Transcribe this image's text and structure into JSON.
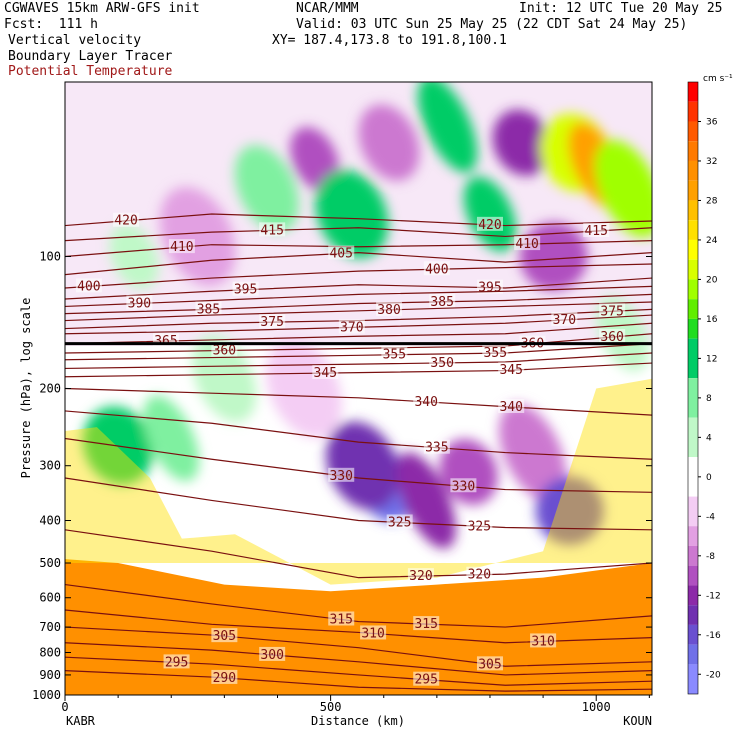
{
  "header": {
    "model": "CGWAVES 15km ARW-GFS init",
    "center": "NCAR/MMM",
    "init": "Init: 12 UTC Tue 20 May 25",
    "fcst": "Fcst:  111 h",
    "valid": "Valid: 03 UTC Sun 25 May 25 (22 CDT Sat 24 May 25)",
    "field1": "Vertical velocity",
    "field2": "Boundary Layer Tracer",
    "field3": "Potential Temperature",
    "xy": "XY= 187.4,173.8 to 191.8,100.1"
  },
  "colors": {
    "theta": "#7a1010",
    "field3_label": "#a01818"
  },
  "chart_data": {
    "type": "heatmap",
    "xlabel": "Distance (km)",
    "ylabel": "Pressure (hPa), log scale",
    "x_ticks": [
      "0",
      "500",
      "1000"
    ],
    "x_tick_values": [
      0,
      500,
      1000
    ],
    "xlim": [
      0,
      1105
    ],
    "x_endpoints": {
      "left": "KABR",
      "right": "KOUN"
    },
    "y_ticks": [
      "100",
      "200",
      "300",
      "400",
      "500",
      "600",
      "700",
      "800",
      "900",
      "1000"
    ],
    "y_tick_values": [
      100,
      200,
      300,
      400,
      500,
      600,
      700,
      800,
      900,
      1000
    ],
    "ylim": [
      1000,
      40
    ],
    "y_scale": "log",
    "colorbar": {
      "unit": "cm s⁻¹",
      "labels": [
        "36",
        "32",
        "28",
        "24",
        "20",
        "16",
        "12",
        "8",
        "4",
        "0",
        "-4",
        "-8",
        "-12",
        "-16",
        "-20"
      ],
      "label_values": [
        36,
        32,
        28,
        24,
        20,
        16,
        12,
        8,
        4,
        0,
        -4,
        -8,
        -12,
        -16,
        -20
      ],
      "range": [
        -22,
        40
      ],
      "colors": [
        "#ff0000",
        "#ff3300",
        "#ff5a00",
        "#ff7a00",
        "#ff9000",
        "#ffa000",
        "#ffc000",
        "#ffe000",
        "#ffff00",
        "#d8ff00",
        "#a0ff00",
        "#60ee00",
        "#20dd20",
        "#00cc66",
        "#7ff0a0",
        "#c0f8c8",
        "#ffffff",
        "#f4cdf4",
        "#e2a0e2",
        "#cc78d0",
        "#b050c0",
        "#8c2aa8",
        "#7030b0",
        "#6a50d0",
        "#7070e8",
        "#8a8aff"
      ],
      "boundaries": [
        40,
        38,
        36,
        34,
        32,
        30,
        28,
        26,
        24,
        22,
        20,
        18,
        16,
        14,
        10,
        6,
        2,
        -2,
        -5,
        -7,
        -9,
        -11,
        -13,
        -15,
        -17,
        -19,
        -22
      ]
    },
    "theta_contours": [
      {
        "label": "420",
        "pressure": [
          85,
          80,
          82,
          85,
          83
        ],
        "label_pos": [
          [
            115,
            420
          ],
          [
            800,
            420
          ]
        ]
      },
      {
        "label": "415",
        "pressure": [
          92,
          88,
          86,
          90,
          86
        ],
        "label_pos": [
          [
            390,
            415
          ],
          [
            1000,
            415
          ]
        ]
      },
      {
        "label": "410",
        "pressure": [
          100,
          94,
          95,
          94,
          92
        ],
        "label_pos": [
          [
            220,
            410
          ],
          [
            870,
            410
          ]
        ]
      },
      {
        "label": "405",
        "pressure": [
          110,
          102,
          98,
          103,
          98
        ],
        "label_pos": [
          [
            520,
            405
          ]
        ]
      },
      {
        "label": "400",
        "pressure": [
          118,
          112,
          108,
          106,
          104
        ],
        "label_pos": [
          [
            45,
            400
          ],
          [
            700,
            400
          ]
        ]
      },
      {
        "label": "395",
        "pressure": [
          125,
          120,
          116,
          118,
          112
        ],
        "label_pos": [
          [
            340,
            395
          ],
          [
            800,
            395
          ]
        ]
      },
      {
        "label": "390",
        "pressure": [
          130,
          126,
          122,
          120,
          117
        ],
        "label_pos": [
          [
            140,
            390
          ]
        ]
      },
      {
        "label": "385",
        "pressure": [
          135,
          132,
          128,
          126,
          122
        ],
        "label_pos": [
          [
            270,
            385
          ],
          [
            710,
            385
          ]
        ]
      },
      {
        "label": "380",
        "pressure": [
          140,
          136,
          133,
          130,
          127
        ],
        "label_pos": [
          [
            610,
            380
          ]
        ]
      },
      {
        "label": "375",
        "pressure": [
          146,
          142,
          140,
          137,
          132
        ],
        "label_pos": [
          [
            390,
            375
          ],
          [
            1030,
            375
          ]
        ]
      },
      {
        "label": "370",
        "pressure": [
          150,
          148,
          145,
          142,
          136
        ],
        "label_pos": [
          [
            540,
            370
          ],
          [
            940,
            370
          ]
        ]
      },
      {
        "label": "365",
        "pressure": [
          158,
          155,
          152,
          150,
          142
        ],
        "label_pos": [
          [
            190,
            365
          ]
        ]
      },
      {
        "label": "360",
        "pressure": [
          166,
          164,
          162,
          160,
          150
        ],
        "label_pos": [
          [
            300,
            360
          ],
          [
            880,
            360
          ],
          [
            1030,
            360
          ]
        ]
      },
      {
        "label": "355",
        "pressure": [
          172,
          170,
          168,
          166,
          158
        ],
        "label_pos": [
          [
            620,
            355
          ],
          [
            810,
            355
          ]
        ]
      },
      {
        "label": "350",
        "pressure": [
          180,
          178,
          176,
          174,
          166
        ],
        "label_pos": [
          [
            710,
            350
          ]
        ]
      },
      {
        "label": "345",
        "pressure": [
          188,
          186,
          184,
          182,
          175
        ],
        "label_pos": [
          [
            490,
            345
          ],
          [
            840,
            345
          ]
        ]
      },
      {
        "label": "340",
        "pressure": [
          200,
          205,
          210,
          220,
          230
        ],
        "label_pos": [
          [
            680,
            340
          ],
          [
            840,
            340
          ]
        ]
      },
      {
        "label": "335",
        "pressure": [
          225,
          240,
          265,
          280,
          290
        ],
        "label_pos": [
          [
            700,
            335
          ]
        ]
      },
      {
        "label": "330",
        "pressure": [
          260,
          290,
          320,
          340,
          345
        ],
        "label_pos": [
          [
            520,
            330
          ],
          [
            750,
            330
          ]
        ]
      },
      {
        "label": "325",
        "pressure": [
          320,
          360,
          400,
          415,
          420
        ],
        "label_pos": [
          [
            630,
            325
          ],
          [
            780,
            325
          ]
        ]
      },
      {
        "label": "320",
        "pressure": [
          420,
          470,
          540,
          530,
          500
        ],
        "label_pos": [
          [
            670,
            320
          ],
          [
            780,
            320
          ]
        ]
      },
      {
        "label": "315",
        "pressure": [
          560,
          620,
          680,
          700,
          660
        ],
        "label_pos": [
          [
            520,
            315
          ],
          [
            680,
            315
          ]
        ]
      },
      {
        "label": "310",
        "pressure": [
          640,
          690,
          720,
          760,
          740
        ],
        "label_pos": [
          [
            580,
            310
          ],
          [
            900,
            310
          ]
        ]
      },
      {
        "label": "305",
        "pressure": [
          700,
          730,
          780,
          860,
          840
        ],
        "label_pos": [
          [
            300,
            305
          ],
          [
            800,
            305
          ]
        ]
      },
      {
        "label": "300",
        "pressure": [
          760,
          790,
          840,
          900,
          880
        ],
        "label_pos": [
          [
            390,
            300
          ]
        ]
      },
      {
        "label": "295",
        "pressure": [
          820,
          850,
          900,
          950,
          930
        ],
        "label_pos": [
          [
            210,
            295
          ],
          [
            680,
            295
          ]
        ]
      },
      {
        "label": "290",
        "pressure": [
          880,
          910,
          960,
          980,
          970
        ],
        "label_pos": [
          [
            300,
            290
          ]
        ]
      }
    ],
    "tropopause_pressure": 158,
    "w_anomalies": [
      {
        "x": 470,
        "p": 60,
        "v": -10
      },
      {
        "x": 610,
        "p": 55,
        "v": -8
      },
      {
        "x": 540,
        "p": 80,
        "v": 14
      },
      {
        "x": 720,
        "p": 50,
        "v": 12
      },
      {
        "x": 860,
        "p": 55,
        "v": -12
      },
      {
        "x": 960,
        "p": 58,
        "v": 22
      },
      {
        "x": 1000,
        "p": 62,
        "v": 30
      },
      {
        "x": 1060,
        "p": 70,
        "v": 20
      },
      {
        "x": 920,
        "p": 100,
        "v": -10
      },
      {
        "x": 800,
        "p": 80,
        "v": 12
      },
      {
        "x": 380,
        "p": 70,
        "v": 10
      },
      {
        "x": 250,
        "p": 90,
        "v": -6
      },
      {
        "x": 130,
        "p": 100,
        "v": 4
      },
      {
        "x": 600,
        "p": 330,
        "v": -18
      },
      {
        "x": 560,
        "p": 300,
        "v": -14
      },
      {
        "x": 680,
        "p": 360,
        "v": -12
      },
      {
        "x": 760,
        "p": 310,
        "v": -10
      },
      {
        "x": 100,
        "p": 270,
        "v": 14
      },
      {
        "x": 200,
        "p": 260,
        "v": 10
      },
      {
        "x": 880,
        "p": 280,
        "v": -8
      },
      {
        "x": 950,
        "p": 380,
        "v": -16
      },
      {
        "x": 1050,
        "p": 150,
        "v": 4
      },
      {
        "x": 300,
        "p": 190,
        "v": 6
      },
      {
        "x": 450,
        "p": 200,
        "v": -4
      }
    ]
  }
}
